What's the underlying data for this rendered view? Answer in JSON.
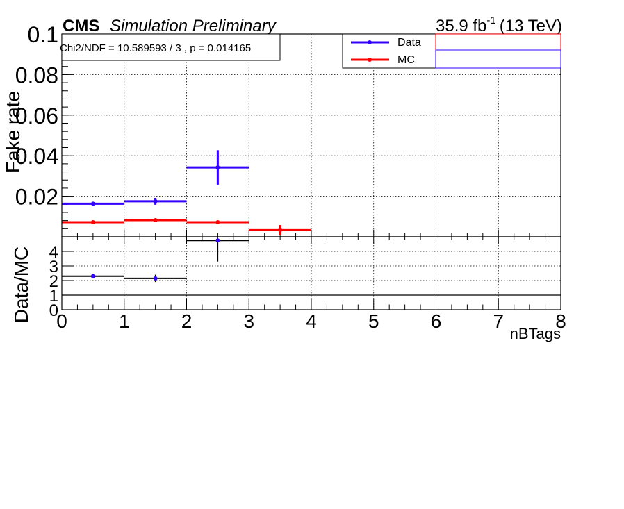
{
  "header": {
    "experiment": "CMS",
    "label": "Simulation Preliminary",
    "lumi_value": "35.9 fb",
    "lumi_exp": "-1",
    "energy": "(13 TeV)"
  },
  "stats_box": {
    "text": "Chi2/NDF = 10.589593 / 3 , p = 0.014165"
  },
  "colors": {
    "data": "#3300ff",
    "mc": "#ff0000",
    "ratio": "#000000",
    "legend_box_red": "#ff0000",
    "legend_box_blue": "#3300ff"
  },
  "chart_data": [
    {
      "type": "scatter",
      "panel": "top",
      "xlabel": "",
      "ylabel": "Fake rate",
      "xlim": [
        0,
        8
      ],
      "ylim": [
        0,
        0.1
      ],
      "y_tick_labels": [
        "0.1",
        "0.08",
        "0.06",
        "0.04",
        "0.02"
      ],
      "y_tick_values": [
        0.1,
        0.08,
        0.06,
        0.04,
        0.02
      ],
      "grid": true,
      "legend_position": "top-right",
      "series": [
        {
          "name": "Data",
          "color": "#3300ff",
          "points": [
            {
              "x": 0.5,
              "xerr": 0.5,
              "y": 0.0163,
              "yerr": 0.0008
            },
            {
              "x": 1.5,
              "xerr": 0.5,
              "y": 0.0175,
              "yerr": 0.0017
            },
            {
              "x": 2.5,
              "xerr": 0.5,
              "y": 0.0342,
              "yerr": 0.0085
            }
          ]
        },
        {
          "name": "MC",
          "color": "#ff0000",
          "points": [
            {
              "x": 0.5,
              "xerr": 0.5,
              "y": 0.0072,
              "yerr": 0.0003
            },
            {
              "x": 1.5,
              "xerr": 0.5,
              "y": 0.0082,
              "yerr": 0.0004
            },
            {
              "x": 2.5,
              "xerr": 0.5,
              "y": 0.0072,
              "yerr": 0.0007
            },
            {
              "x": 3.5,
              "xerr": 0.5,
              "y": 0.0033,
              "yerr": 0.0025
            }
          ]
        }
      ]
    },
    {
      "type": "scatter",
      "panel": "ratio",
      "xlabel": "nBTags",
      "ylabel": "Data/MC",
      "xlim": [
        0,
        8
      ],
      "ylim": [
        0,
        5
      ],
      "x_tick_labels": [
        "0",
        "1",
        "2",
        "3",
        "4",
        "5",
        "6",
        "7",
        "8"
      ],
      "y_tick_labels": [
        "0",
        "1",
        "2",
        "3",
        "4"
      ],
      "y_tick_values": [
        0,
        1,
        2,
        3,
        4
      ],
      "grid": true,
      "reference_line": 1,
      "points": [
        {
          "x": 0.5,
          "xerr": 0.5,
          "y": 2.3,
          "yerr": 0.12,
          "color": "#3300ff"
        },
        {
          "x": 1.5,
          "xerr": 0.5,
          "y": 2.15,
          "yerr": 0.25,
          "color": "#3300ff"
        },
        {
          "x": 2.5,
          "xerr": 0.5,
          "y": 4.75,
          "yerr_low": 1.45,
          "yerr_high": 0,
          "color": "#3300ff"
        }
      ]
    }
  ]
}
